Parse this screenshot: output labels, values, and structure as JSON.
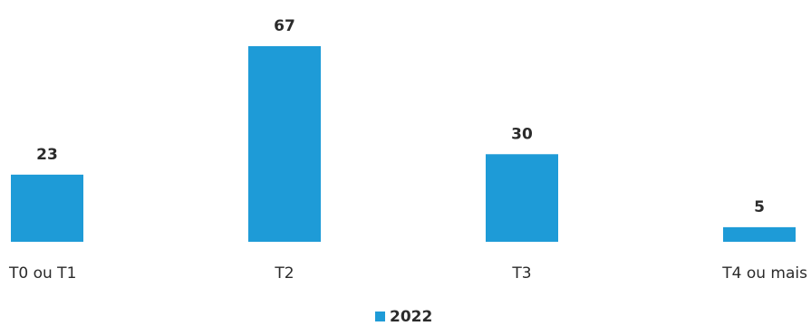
{
  "chart_data": {
    "type": "bar",
    "categories": [
      "T0 ou T1",
      "T2",
      "T3",
      "T4 ou mais"
    ],
    "series": [
      {
        "name": "2022",
        "values": [
          23,
          67,
          30,
          5
        ],
        "color": "#1e9bd7"
      }
    ],
    "ylim": [
      0,
      67
    ],
    "grid": false,
    "legend_position": "bottom-center",
    "data_labels": true
  }
}
